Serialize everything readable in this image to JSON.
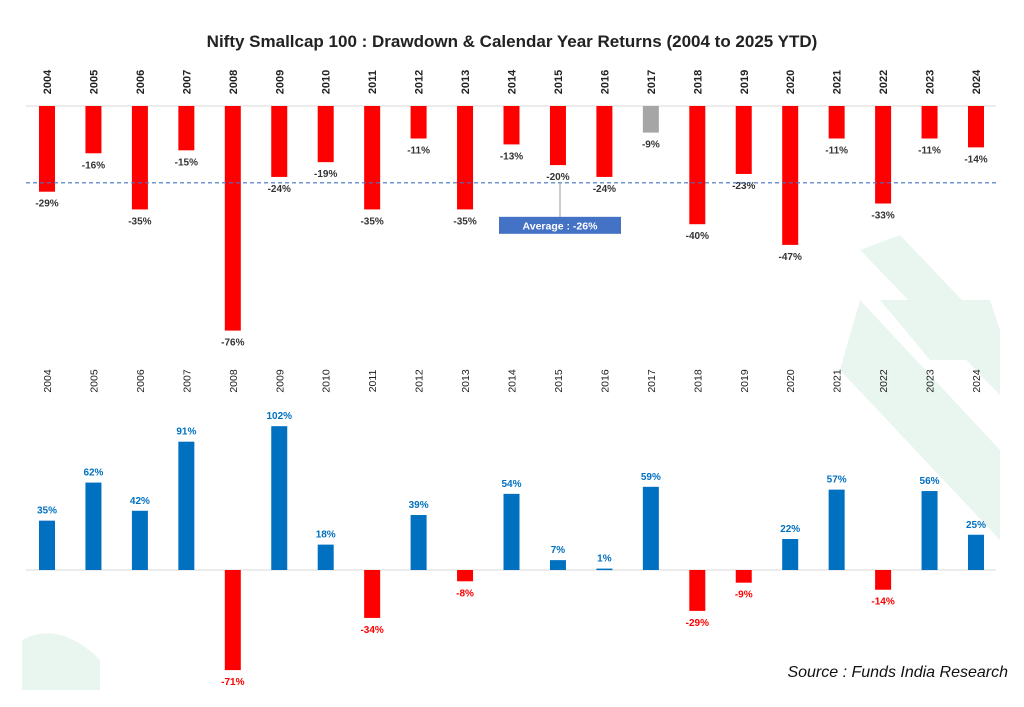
{
  "title": "Nifty Smallcap 100 : Drawdown & Calendar Year Returns (2004 to 2025 YTD)",
  "source": "Source : Funds India Research",
  "colors": {
    "negative": "#ff0000",
    "positive": "#0070c0",
    "neutral": "#a6a6a6",
    "average_line": "#4472c4",
    "average_box": "#4472c4",
    "watermark": "#e9f6ef"
  },
  "chart_data": [
    {
      "type": "bar",
      "categories": [
        "2004",
        "2005",
        "2006",
        "2007",
        "2008",
        "2009",
        "2010",
        "2011",
        "2012",
        "2013",
        "2014",
        "2015",
        "2016",
        "2017",
        "2018",
        "2019",
        "2020",
        "2021",
        "2022",
        "2023",
        "2024"
      ],
      "values": [
        -29,
        -16,
        -35,
        -15,
        -76,
        -24,
        -19,
        -35,
        -11,
        -35,
        -13,
        -20,
        -24,
        -9,
        -40,
        -23,
        -47,
        -11,
        -33,
        -11,
        -14
      ],
      "data_labels": [
        "-29%",
        "-16%",
        "-35%",
        "-15%",
        "-76%",
        "-24%",
        "-19%",
        "-35%",
        "-11%",
        "-35%",
        "-13%",
        "-20%",
        "-24%",
        "-9%",
        "-40%",
        "-23%",
        "-47%",
        "-11%",
        "-33%",
        "-11%",
        "-14%"
      ],
      "average": -26,
      "average_label": "Average : -26%",
      "highlight_category": "2017",
      "ylim": [
        -80,
        0
      ],
      "grid": false,
      "legend": "none"
    },
    {
      "type": "bar",
      "categories": [
        "2004",
        "2005",
        "2006",
        "2007",
        "2008",
        "2009",
        "2010",
        "2011",
        "2012",
        "2013",
        "2014",
        "2015",
        "2016",
        "2017",
        "2018",
        "2019",
        "2020",
        "2021",
        "2022",
        "2023",
        "2024"
      ],
      "values": [
        35,
        62,
        42,
        91,
        -71,
        102,
        18,
        -34,
        39,
        -8,
        54,
        7,
        1,
        59,
        -29,
        -9,
        22,
        57,
        -14,
        56,
        25
      ],
      "data_labels": [
        "35%",
        "62%",
        "42%",
        "91%",
        "-71%",
        "102%",
        "18%",
        "-34%",
        "39%",
        "-8%",
        "54%",
        "7%",
        "1%",
        "59%",
        "-29%",
        "-9%",
        "22%",
        "57%",
        "-14%",
        "56%",
        "25%"
      ],
      "ylim": [
        -75,
        105
      ],
      "grid": false,
      "legend": "none"
    }
  ]
}
